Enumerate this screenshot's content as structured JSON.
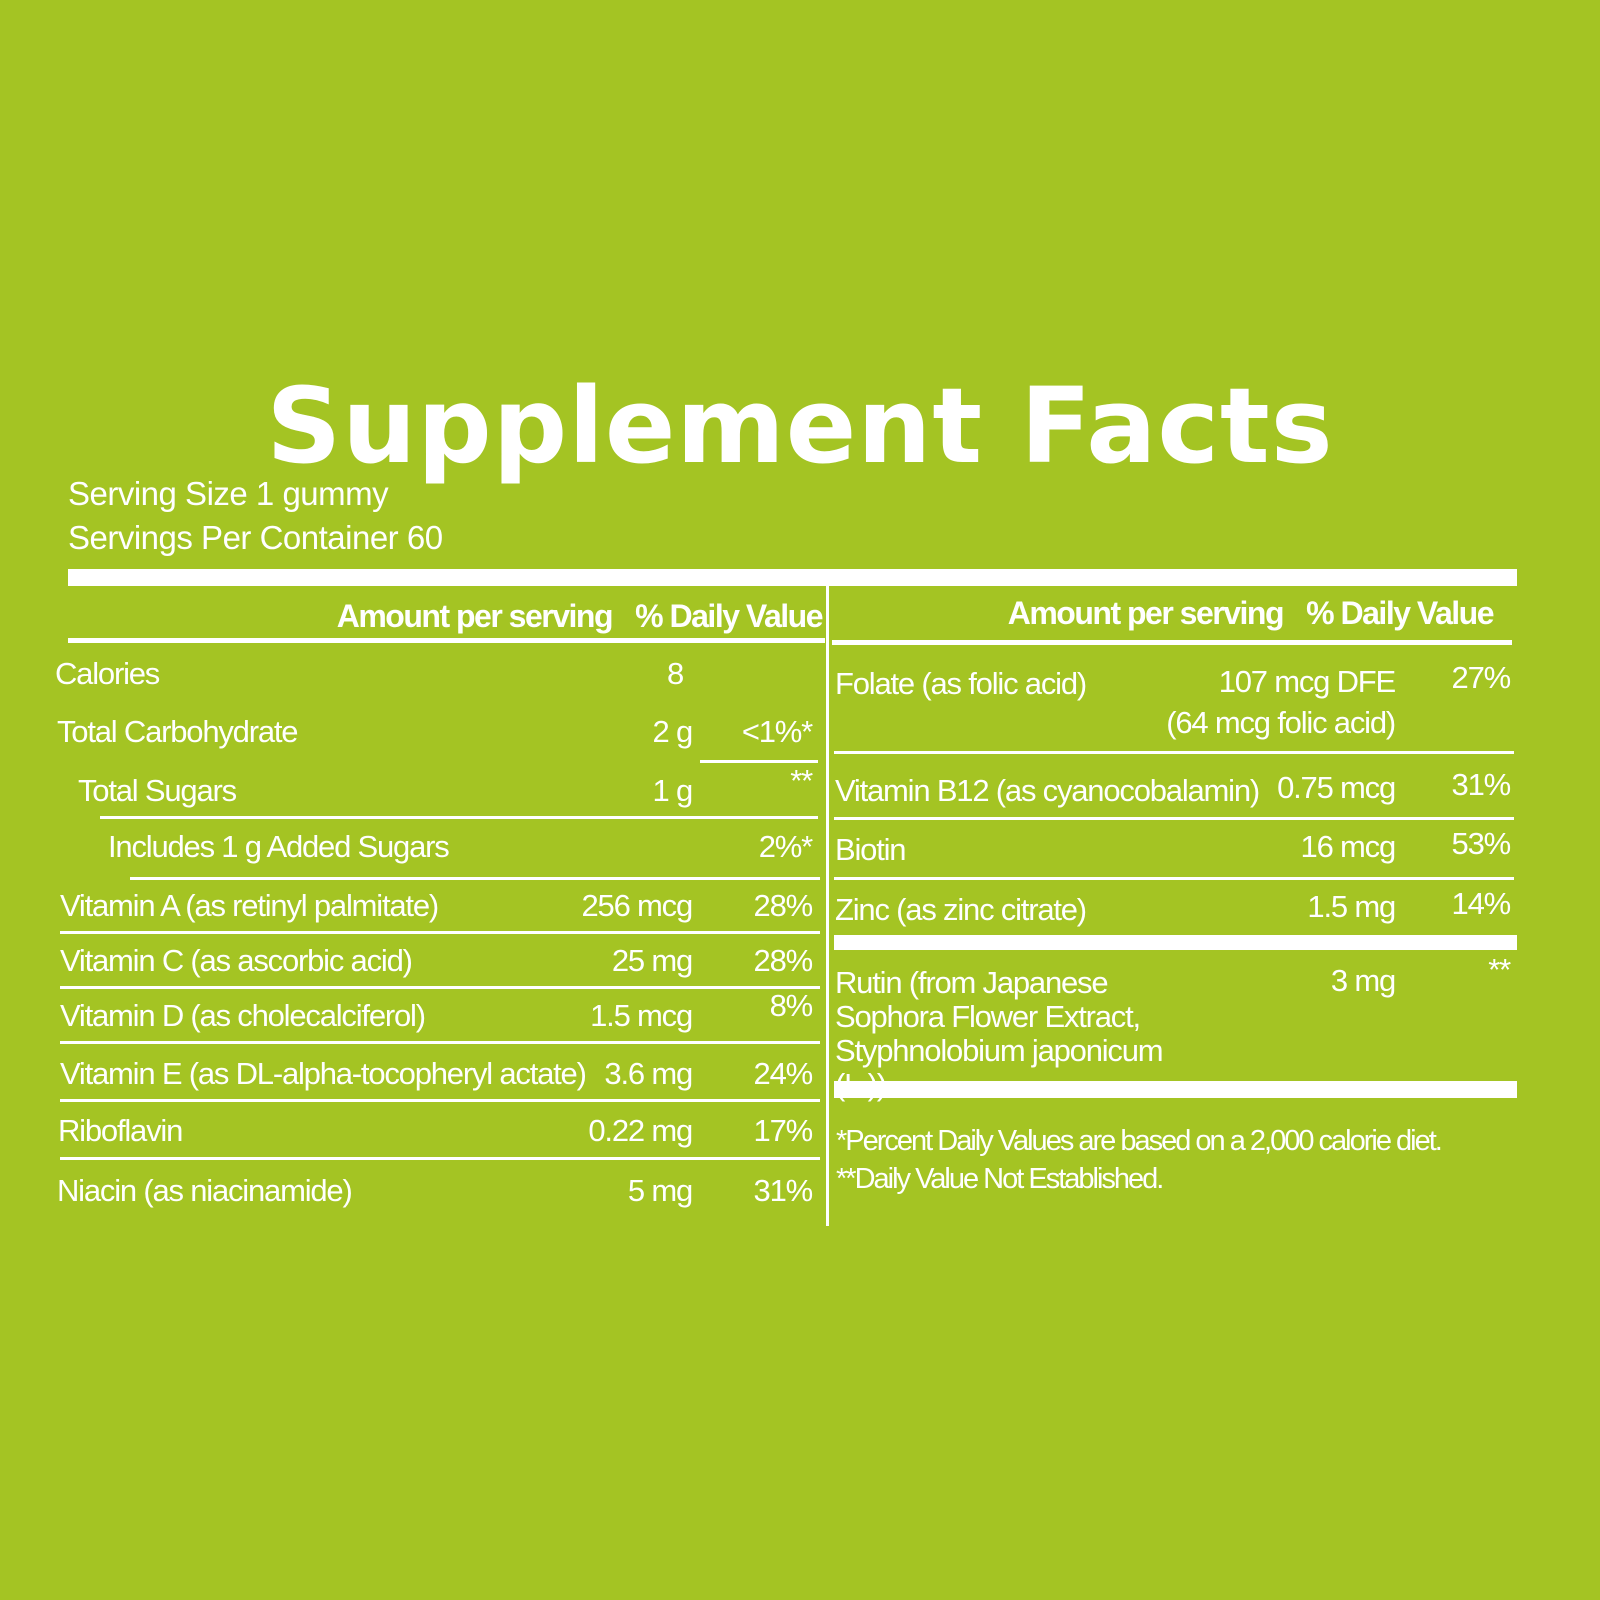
{
  "title": "Supplement Facts",
  "serving_size": "Serving Size 1 gummy",
  "servings_per_container": "Servings Per Container 60",
  "left_table": {
    "header": {
      "amount": "Amount per serving",
      "daily_value": "% Daily Value"
    },
    "rows": [
      {
        "name": "Calories",
        "amount": "8"
      },
      {
        "name": "Total Carbohydrate",
        "amount": "2 g",
        "daily_value": "<1%*"
      },
      {
        "name": "Total Sugars",
        "amount": "1 g",
        "daily_value": "**"
      },
      {
        "name": "Includes 1 g Added Sugars",
        "daily_value": "2%*"
      },
      {
        "name": "Vitamin A (as retinyl palmitate)",
        "amount": "256 mcg",
        "daily_value": "28%"
      },
      {
        "name": "Vitamin C (as ascorbic acid)",
        "amount": "25 mg",
        "daily_value": "28%"
      },
      {
        "name": "Vitamin D (as cholecalciferol)",
        "amount": "1.5 mcg",
        "daily_value": "8%"
      },
      {
        "name": "Vitamin E (as DL-alpha-tocopheryl actate)",
        "amount": "3.6 mg",
        "daily_value": "24%"
      },
      {
        "name": "Riboflavin",
        "amount": "0.22 mg",
        "daily_value": "17%"
      },
      {
        "name": "Niacin (as niacinamide)",
        "amount": "5 mg",
        "daily_value": "31%"
      }
    ]
  },
  "right_table": {
    "header": {
      "amount": "Amount per serving",
      "daily_value": "% Daily Value"
    },
    "rows": [
      {
        "name": "Folate (as folic acid)",
        "amount": "107 mcg DFE",
        "amount_note": "(64 mcg folic acid)",
        "daily_value": "27%"
      },
      {
        "name": "Vitamin B12 (as cyanocobalamin)",
        "amount": "0.75 mcg",
        "daily_value": "31%"
      },
      {
        "name": "Biotin",
        "amount": "16 mcg",
        "daily_value": "53%"
      },
      {
        "name": "Zinc (as zinc citrate)",
        "amount": "1.5 mg",
        "daily_value": "14%"
      },
      {
        "name": "Rutin (from Japanese Sophora Flower Extract, Styphnolobium japonicum (L.))",
        "amount": "3 mg",
        "daily_value": "**"
      }
    ]
  },
  "footnotes": [
    "*Percent Daily Values are based on a 2,000 calorie diet.",
    "**Daily Value Not Established."
  ]
}
